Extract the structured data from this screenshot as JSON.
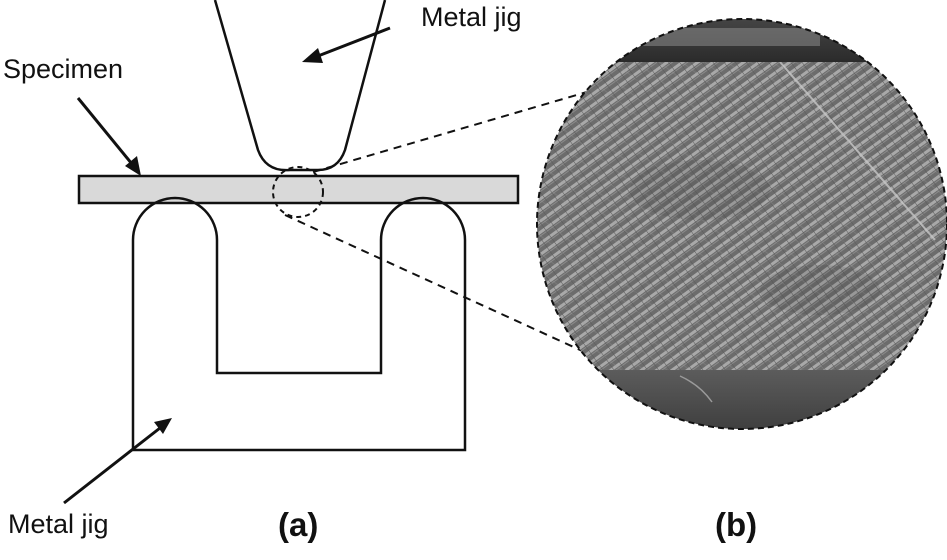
{
  "labels": {
    "metal_jig_top": "Metal jig",
    "specimen": "Specimen",
    "metal_jig_bottom": "Metal jig",
    "panel_a": "(a)",
    "panel_b": "(b)"
  },
  "colors": {
    "line": "#111111",
    "specimen_fill": "#d9d9d9",
    "micrograph_base": "#6e6e6e",
    "micrograph_fiber": "#a8a8a8",
    "micrograph_dark_band": "#3a3a3a"
  }
}
